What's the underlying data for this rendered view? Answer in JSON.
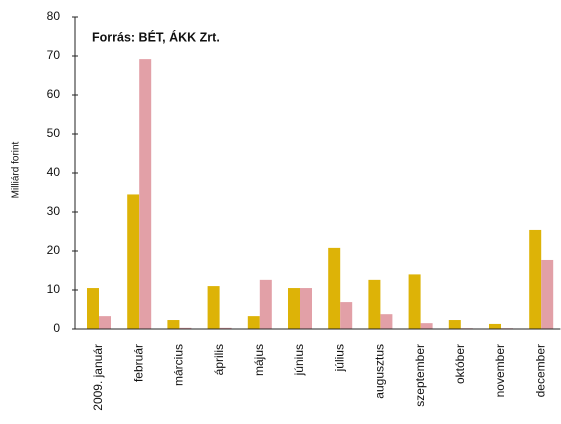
{
  "chart_data": {
    "type": "bar",
    "annotation": "Forrás:  BÉT, ÁKK Zrt.",
    "y_label": "Milliárd forint",
    "categories": [
      "2009. január",
      "február",
      "március",
      "április",
      "május",
      "június",
      "július",
      "augusztus",
      "szeptember",
      "október",
      "november",
      "december"
    ],
    "series": [
      {
        "color": "#ddb307",
        "values": [
          10.5,
          34.5,
          2.3,
          11,
          3.3,
          10.5,
          20.8,
          12.6,
          14,
          2.3,
          1.3,
          25.4
        ]
      },
      {
        "color": "#e2a0a7",
        "values": [
          3.3,
          69.2,
          0.3,
          0.3,
          12.6,
          10.5,
          6.9,
          3.8,
          1.5,
          0.2,
          0.2,
          17.7
        ]
      }
    ],
    "ylim": [
      0,
      80
    ],
    "yticks": [
      0,
      10,
      20,
      30,
      40,
      50,
      60,
      70,
      80
    ],
    "grid": false
  }
}
